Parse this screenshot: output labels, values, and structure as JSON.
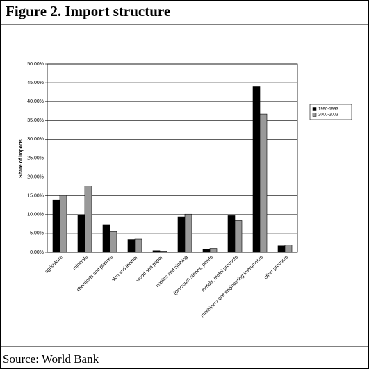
{
  "chart_data": {
    "type": "bar",
    "title": "Figure 2. Import structure",
    "source": "Source: World Bank",
    "y_label": "Share of imports",
    "categories": [
      "agriculture",
      "minerals",
      "chemicals and plastics",
      "skin and leather",
      "wood and paper",
      "textiles and clothing",
      "(precious) stones, pearls",
      "metals, metal products",
      "machinery and engineering instruments",
      "other products"
    ],
    "series": [
      {
        "name": "1990-1993",
        "color": "#000000",
        "values": [
          13.8,
          10.0,
          7.2,
          3.4,
          0.4,
          9.4,
          0.8,
          9.7,
          44.0,
          1.7
        ]
      },
      {
        "name": "2000-2003",
        "color": "#999999",
        "values": [
          15.1,
          17.6,
          5.5,
          3.5,
          0.3,
          10.1,
          1.0,
          8.4,
          36.7,
          1.9
        ]
      }
    ],
    "ylim": [
      0,
      50
    ],
    "yticks": [
      {
        "value": 0,
        "label": "0.00%"
      },
      {
        "value": 5,
        "label": "5.00%"
      },
      {
        "value": 10,
        "label": "10.00%"
      },
      {
        "value": 15,
        "label": "15.00%"
      },
      {
        "value": 20,
        "label": "20.00%"
      },
      {
        "value": 25,
        "label": "25.00%"
      },
      {
        "value": 30,
        "label": "30.00%"
      },
      {
        "value": 35,
        "label": "35.00%"
      },
      {
        "value": 40,
        "label": "40.00%"
      },
      {
        "value": 45,
        "label": "45.00%"
      },
      {
        "value": 50,
        "label": "50.00%"
      }
    ],
    "grid": true,
    "legend": "right"
  }
}
